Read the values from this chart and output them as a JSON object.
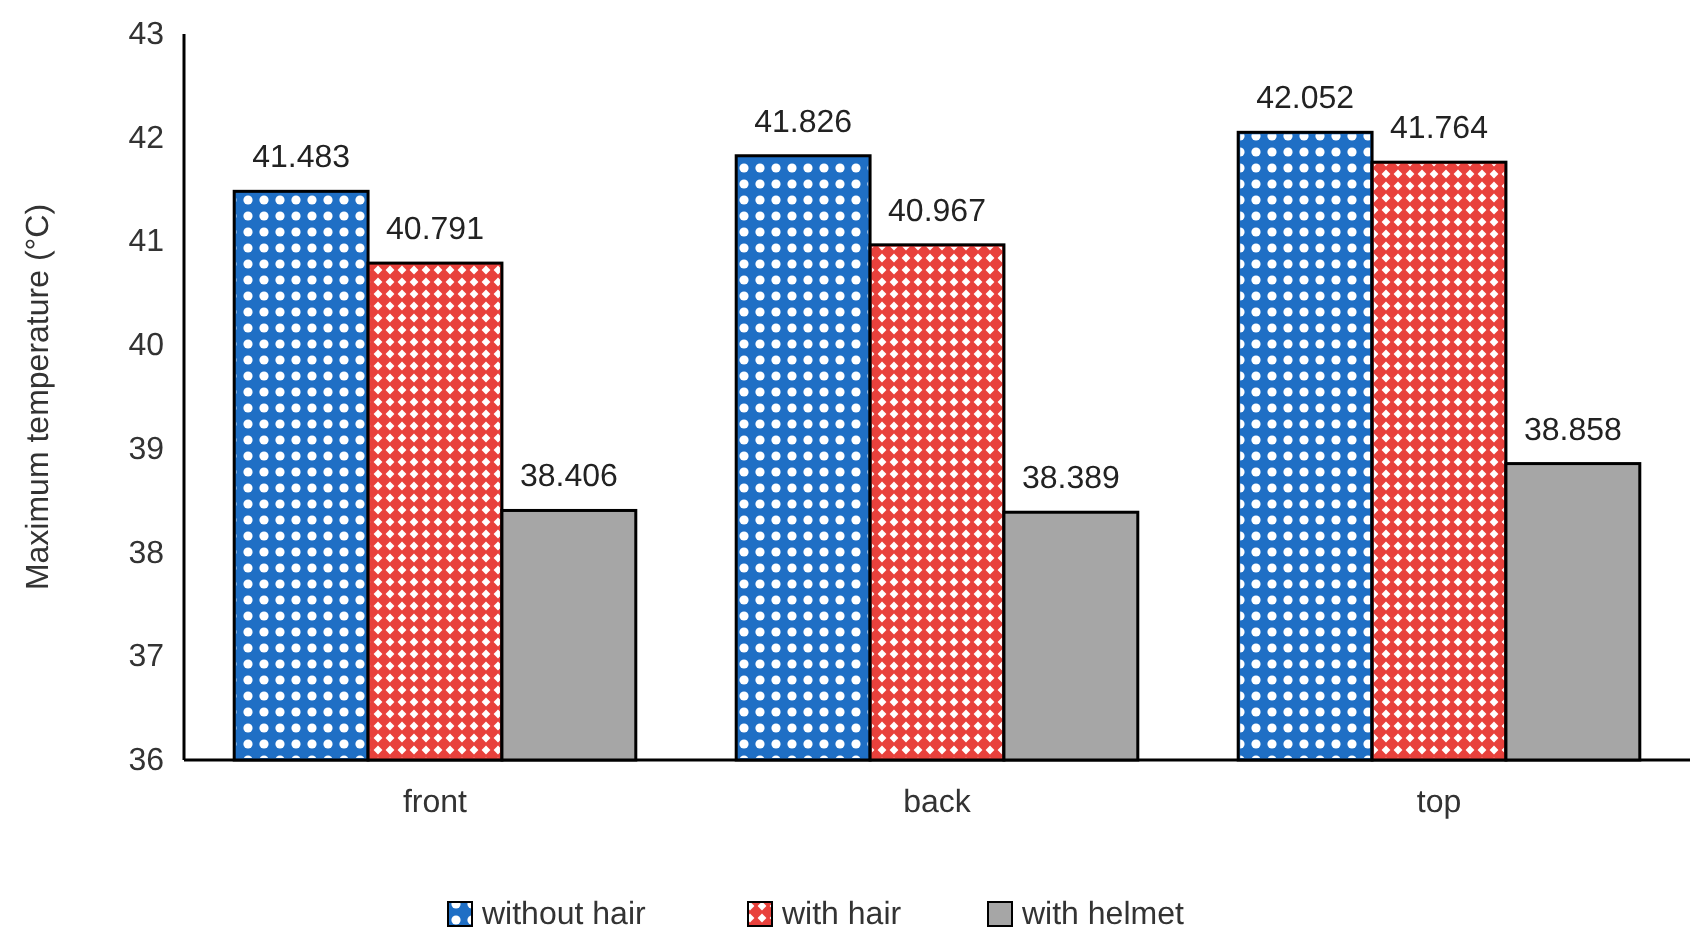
{
  "chart_data": {
    "type": "bar",
    "ylabel": "Maximum temperature (°C)",
    "categories": [
      "front",
      "back",
      "top"
    ],
    "series": [
      {
        "name": "without hair",
        "color": "#1f6fc5",
        "values": [
          41.483,
          41.826,
          42.052
        ]
      },
      {
        "name": "with hair",
        "color": "#e8413c",
        "values": [
          40.791,
          40.967,
          41.764
        ]
      },
      {
        "name": "with helmet",
        "color": "#a6a6a6",
        "values": [
          38.406,
          38.389,
          38.858
        ]
      }
    ],
    "ylim": [
      36,
      43
    ],
    "yticks": [
      36,
      37,
      38,
      39,
      40,
      41,
      42,
      43
    ],
    "data_labels": true,
    "legend": "bottom",
    "grid": false
  }
}
